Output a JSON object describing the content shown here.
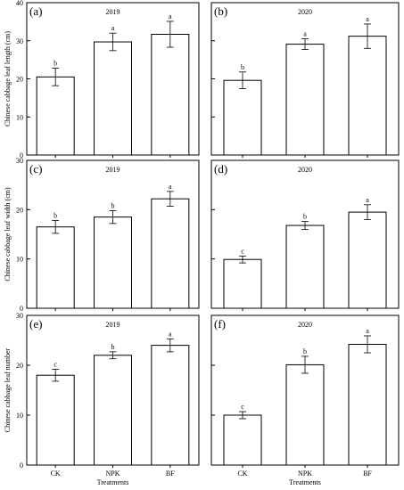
{
  "chart_data": [
    {
      "id": "a",
      "type": "bar",
      "panel_label": "(a)",
      "year": "2019",
      "ylabel": "Chinese cabbage leaf length (cm)",
      "xlabel": "",
      "categories": [
        "CK",
        "NPK",
        "BF"
      ],
      "values": [
        20.5,
        29.7,
        31.7
      ],
      "errors": [
        2.3,
        2.3,
        3.4
      ],
      "letters": [
        "b",
        "a",
        "a"
      ],
      "ylim": [
        0,
        40
      ],
      "yticks": [
        "0",
        "10",
        "20",
        "30",
        "40"
      ],
      "show_xticklabels": false
    },
    {
      "id": "b",
      "type": "bar",
      "panel_label": "(b)",
      "year": "2020",
      "ylabel": "",
      "xlabel": "",
      "categories": [
        "CK",
        "NPK",
        "BF"
      ],
      "values": [
        19.6,
        29.1,
        31.2
      ],
      "errors": [
        2.2,
        1.4,
        3.2
      ],
      "letters": [
        "b",
        "a",
        "a"
      ],
      "ylim": [
        0,
        40
      ],
      "yticks": [],
      "show_xticklabels": false
    },
    {
      "id": "c",
      "type": "bar",
      "panel_label": "(c)",
      "year": "2019",
      "ylabel": "Chinese cabbage leaf width (cm)",
      "xlabel": "",
      "categories": [
        "CK",
        "NPK",
        "BF"
      ],
      "values": [
        16.5,
        18.5,
        22.2
      ],
      "errors": [
        1.3,
        1.3,
        1.5
      ],
      "letters": [
        "b",
        "b",
        "a"
      ],
      "ylim": [
        0,
        30
      ],
      "yticks": [
        "0",
        "10",
        "20",
        "30"
      ],
      "show_xticklabels": false
    },
    {
      "id": "d",
      "type": "bar",
      "panel_label": "(d)",
      "year": "2020",
      "ylabel": "",
      "xlabel": "",
      "categories": [
        "CK",
        "NPK",
        "BF"
      ],
      "values": [
        9.9,
        16.8,
        19.5
      ],
      "errors": [
        0.7,
        0.8,
        1.5
      ],
      "letters": [
        "c",
        "b",
        "a"
      ],
      "ylim": [
        0,
        30
      ],
      "yticks": [],
      "show_xticklabels": false
    },
    {
      "id": "e",
      "type": "bar",
      "panel_label": "(e)",
      "year": "2019",
      "ylabel": "Chinese cabbage leaf number",
      "xlabel": "Treatments",
      "categories": [
        "CK",
        "NPK",
        "BF"
      ],
      "values": [
        18.0,
        22.0,
        24.0
      ],
      "errors": [
        1.2,
        0.7,
        1.3
      ],
      "letters": [
        "c",
        "b",
        "a"
      ],
      "ylim": [
        0,
        30
      ],
      "yticks": [
        "0",
        "10",
        "20",
        "30"
      ],
      "show_xticklabels": true
    },
    {
      "id": "f",
      "type": "bar",
      "panel_label": "(f)",
      "year": "2020",
      "ylabel": "",
      "xlabel": "Treatments",
      "categories": [
        "CK",
        "NPK",
        "BF"
      ],
      "values": [
        10.0,
        20.1,
        24.2
      ],
      "errors": [
        0.7,
        1.7,
        1.7
      ],
      "letters": [
        "c",
        "b",
        "a"
      ],
      "ylim": [
        0,
        30
      ],
      "yticks": [],
      "show_xticklabels": true
    }
  ],
  "colors": {
    "bar_fill": "#ffffff",
    "stroke": "#000000"
  }
}
